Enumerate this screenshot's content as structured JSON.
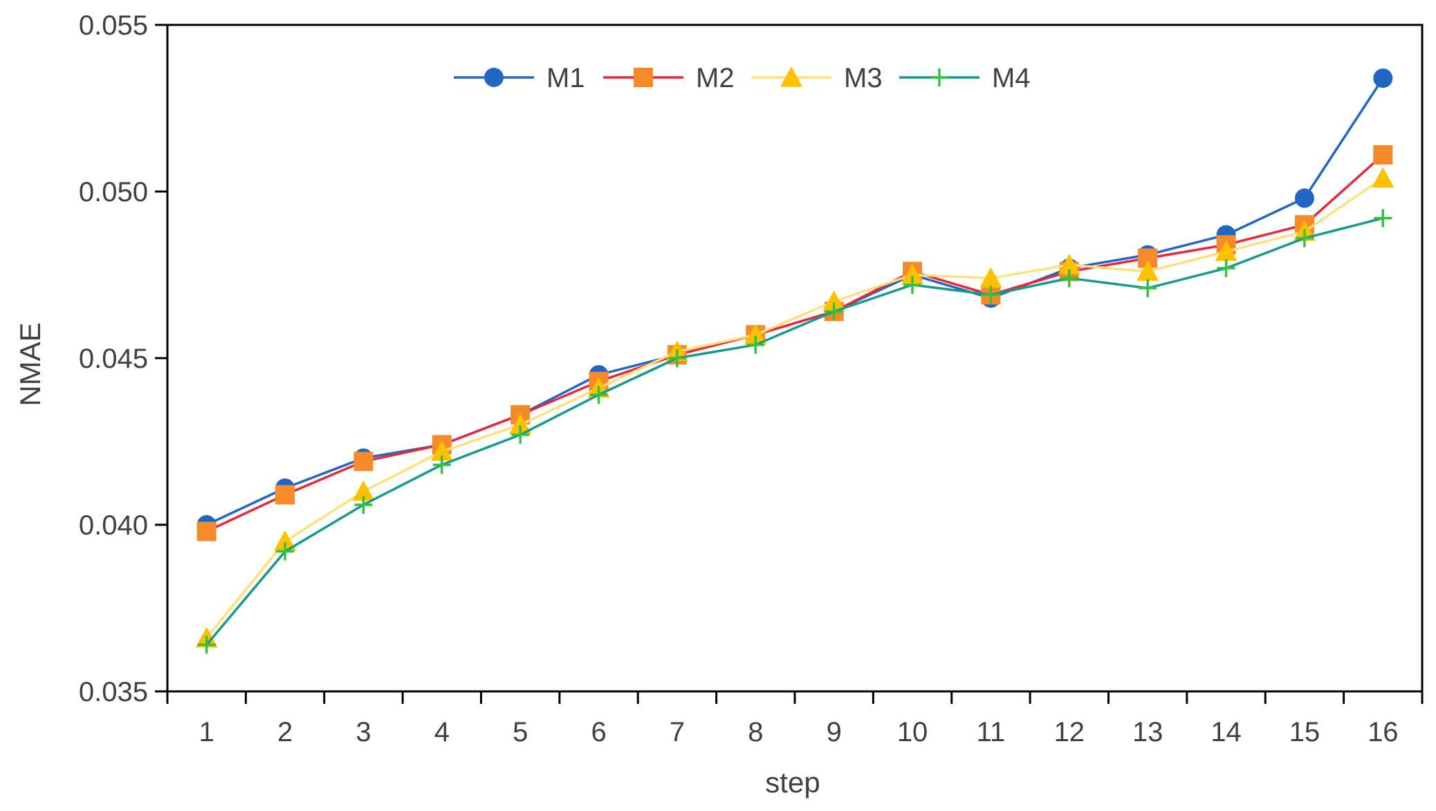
{
  "chart_data": {
    "type": "line",
    "title": "",
    "xlabel": "step",
    "ylabel": "NMAE",
    "categories": [
      "1",
      "2",
      "3",
      "4",
      "5",
      "6",
      "7",
      "8",
      "9",
      "10",
      "11",
      "12",
      "13",
      "14",
      "15",
      "16"
    ],
    "ylim": [
      0.035,
      0.055
    ],
    "yticks": [
      "0.035",
      "0.040",
      "0.045",
      "0.050",
      "0.055"
    ],
    "grid": false,
    "legend_position": "top-center",
    "series": [
      {
        "name": "M1",
        "color": "#2266c4",
        "marker": "circle",
        "values": [
          0.04,
          0.0411,
          0.042,
          0.0424,
          0.0433,
          0.0445,
          0.0451,
          0.0457,
          0.0464,
          0.0475,
          0.0468,
          0.0477,
          0.0481,
          0.0487,
          0.0498,
          0.0534
        ]
      },
      {
        "name": "M2",
        "color": "#e8273a",
        "markerColor": "#f58a2a",
        "marker": "square",
        "values": [
          0.0398,
          0.0409,
          0.0419,
          0.0424,
          0.0433,
          0.0443,
          0.0451,
          0.0457,
          0.0464,
          0.0476,
          0.0469,
          0.0476,
          0.048,
          0.0484,
          0.049,
          0.0511
        ]
      },
      {
        "name": "M3",
        "color": "#ffe07a",
        "markerColor": "#ffc000",
        "marker": "triangle",
        "values": [
          0.0366,
          0.0395,
          0.041,
          0.0422,
          0.043,
          0.0441,
          0.0452,
          0.0457,
          0.0467,
          0.0475,
          0.0474,
          0.0478,
          0.0476,
          0.0482,
          0.0488,
          0.0504
        ]
      },
      {
        "name": "M4",
        "color": "#159a8c",
        "markerColor": "#33c23e",
        "marker": "plus",
        "values": [
          0.0364,
          0.0392,
          0.0406,
          0.0418,
          0.0427,
          0.0439,
          0.045,
          0.0454,
          0.0464,
          0.0472,
          0.0469,
          0.0474,
          0.0471,
          0.0477,
          0.0486,
          0.0492
        ]
      }
    ]
  }
}
